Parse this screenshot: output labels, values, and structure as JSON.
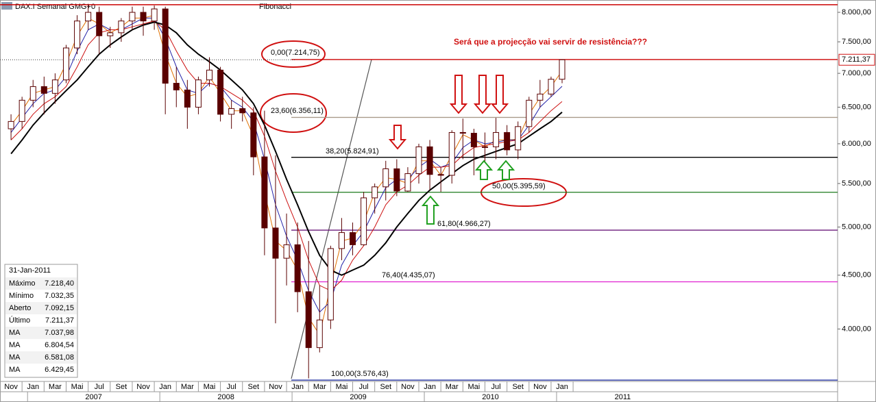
{
  "chart_data": {
    "type": "candlestick",
    "header": "DAX.I Semanal GMG+0",
    "tool": "Fibonacci",
    "annotation": "Será que a projecção vai servir de resistência???",
    "log_scale": true,
    "grid": false,
    "up_color": "#ffffff",
    "down_color": "#5a0000",
    "x": [
      "2006-11",
      "2006-12",
      "2007-01",
      "2007-02",
      "2007-03",
      "2007-04",
      "2007-05",
      "2007-06",
      "2007-07",
      "2007-08",
      "2007-09",
      "2007-10",
      "2007-11",
      "2007-12",
      "2008-01",
      "2008-02",
      "2008-03",
      "2008-04",
      "2008-05",
      "2008-06",
      "2008-07",
      "2008-08",
      "2008-09",
      "2008-10",
      "2008-11",
      "2008-12",
      "2009-01",
      "2009-02",
      "2009-03",
      "2009-04",
      "2009-05",
      "2009-06",
      "2009-07",
      "2009-08",
      "2009-09",
      "2009-10",
      "2009-11",
      "2009-12",
      "2010-01",
      "2010-02",
      "2010-03",
      "2010-04",
      "2010-05",
      "2010-06",
      "2010-07",
      "2010-08",
      "2010-09",
      "2010-10",
      "2010-11",
      "2010-12",
      "2011-01"
    ],
    "open": [
      6200,
      6300,
      6600,
      6800,
      6700,
      6900,
      7400,
      7850,
      8000,
      7600,
      7650,
      7850,
      8000,
      7850,
      8060,
      6850,
      6750,
      6500,
      6900,
      7050,
      6400,
      6480,
      6420,
      5830,
      4990,
      4670,
      4810,
      4340,
      3840,
      4080,
      4770,
      4940,
      4810,
      5330,
      5460,
      5680,
      5410,
      5620,
      5960,
      5610,
      5600,
      6150,
      6140,
      5960,
      5960,
      6150,
      5920,
      6230,
      6600,
      6690,
      6910
    ],
    "high": [
      6400,
      6650,
      6900,
      6950,
      7000,
      7450,
      7950,
      8150,
      8100,
      7750,
      7900,
      8100,
      8100,
      8120,
      8100,
      7100,
      6900,
      6950,
      7250,
      7100,
      6600,
      6650,
      6500,
      6450,
      5850,
      5150,
      5050,
      4850,
      4400,
      4800,
      5100,
      5050,
      5400,
      5500,
      5780,
      5800,
      5700,
      6000,
      6050,
      5700,
      6180,
      6340,
      6200,
      6150,
      6350,
      6250,
      6300,
      6650,
      6900,
      6950,
      7218.4
    ],
    "low": [
      6050,
      6200,
      6500,
      6400,
      6550,
      6850,
      7300,
      7700,
      7300,
      7400,
      7500,
      7700,
      7600,
      7700,
      6400,
      6500,
      6200,
      6400,
      6800,
      6300,
      6200,
      6300,
      5600,
      4700,
      4050,
      4400,
      4150,
      3590,
      3800,
      4000,
      4650,
      4700,
      4800,
      5150,
      5300,
      5350,
      5400,
      5500,
      5420,
      5400,
      5500,
      5800,
      5600,
      5700,
      5800,
      5850,
      5800,
      6150,
      6500,
      6650,
      6850
    ],
    "close": [
      6300,
      6600,
      6800,
      6700,
      6900,
      7400,
      7850,
      8000,
      7600,
      7650,
      7850,
      8000,
      7850,
      8060,
      6850,
      6750,
      6500,
      6900,
      7050,
      6400,
      6480,
      6420,
      5830,
      4990,
      4670,
      4810,
      4340,
      3840,
      4080,
      4770,
      4940,
      4810,
      5330,
      5460,
      5680,
      5410,
      5620,
      5960,
      5610,
      5600,
      6150,
      6140,
      5960,
      5960,
      6150,
      5920,
      6230,
      6600,
      6690,
      6910,
      7211.37
    ],
    "series": [
      {
        "name": "MA",
        "color": "#e07000",
        "legend_value": "7.037,98",
        "values": [
          6250,
          6450,
          6700,
          6750,
          6800,
          7150,
          7600,
          7900,
          7800,
          7650,
          7750,
          7900,
          7900,
          7950,
          7300,
          6850,
          6650,
          6700,
          6950,
          6700,
          6450,
          6450,
          6100,
          5400,
          4850,
          4750,
          4550,
          4100,
          3950,
          4400,
          4850,
          4880,
          5050,
          5400,
          5570,
          5550,
          5500,
          5780,
          5780,
          5600,
          5850,
          6120,
          6050,
          5960,
          6050,
          6050,
          6060,
          6400,
          6640,
          6800,
          7037.98
        ]
      },
      {
        "name": "MA",
        "color": "#2020a8",
        "legend_value": "6.804,54",
        "values": [
          6150,
          6350,
          6550,
          6700,
          6750,
          6950,
          7350,
          7700,
          7800,
          7700,
          7700,
          7800,
          7900,
          7900,
          7550,
          7100,
          6750,
          6700,
          6850,
          6800,
          6600,
          6500,
          6300,
          5800,
          5250,
          4900,
          4650,
          4350,
          4150,
          4250,
          4600,
          4800,
          4950,
          5200,
          5450,
          5550,
          5550,
          5700,
          5800,
          5700,
          5750,
          5950,
          6050,
          6000,
          6020,
          6050,
          6050,
          6250,
          6500,
          6650,
          6804.54
        ]
      },
      {
        "name": "MA",
        "color": "#cc1010",
        "legend_value": "6.581,08",
        "values": [
          6050,
          6200,
          6400,
          6550,
          6650,
          6800,
          7100,
          7450,
          7650,
          7700,
          7700,
          7750,
          7800,
          7850,
          7700,
          7350,
          7050,
          6850,
          6850,
          6800,
          6700,
          6600,
          6450,
          6100,
          5650,
          5300,
          5000,
          4650,
          4400,
          4350,
          4450,
          4650,
          4800,
          5000,
          5250,
          5400,
          5480,
          5600,
          5700,
          5700,
          5720,
          5850,
          5950,
          5980,
          6000,
          6030,
          6050,
          6150,
          6300,
          6450,
          6581.08
        ]
      },
      {
        "name": "MA",
        "color": "#000000",
        "legend_value": "6.429,45",
        "values": [
          5870,
          6050,
          6250,
          6420,
          6580,
          6740,
          6900,
          7100,
          7300,
          7450,
          7580,
          7700,
          7780,
          7830,
          7780,
          7650,
          7450,
          7300,
          7180,
          7050,
          6900,
          6750,
          6550,
          6250,
          5900,
          5550,
          5250,
          4950,
          4700,
          4550,
          4500,
          4550,
          4600,
          4700,
          4830,
          5000,
          5150,
          5300,
          5420,
          5520,
          5620,
          5720,
          5800,
          5850,
          5900,
          5950,
          6000,
          6100,
          6200,
          6300,
          6429.45
        ]
      }
    ],
    "fib_levels": [
      {
        "label": "0,00(7.214,75)",
        "value": 7214.75,
        "color": "#cc0000"
      },
      {
        "label": "23,60(6.356,11)",
        "value": 6356.11,
        "color": "#a89a8a"
      },
      {
        "label": "38,20(5.824,91)",
        "value": 5824.91,
        "color": "#000000"
      },
      {
        "label": "50,00(5.395,59)",
        "value": 5395.59,
        "color": "#1a7a1a"
      },
      {
        "label": "61,80(4.966,27)",
        "value": 4966.27,
        "color": "#6a1a7a"
      },
      {
        "label": "76,40(4.435,07)",
        "value": 4435.07,
        "color": "#e020d0"
      },
      {
        "label": "100,00(3.576,43)",
        "value": 3576.43,
        "color": "#2030a0"
      }
    ],
    "hlines": [
      {
        "value": 8135,
        "color": "#cc0000"
      }
    ],
    "xlim": [
      "2006-10",
      "2013-02"
    ],
    "ylim": [
      3566,
      8219
    ],
    "yticks": [
      {
        "value": 4000,
        "label": "4.000,00"
      },
      {
        "value": 4500,
        "label": "4.500,00"
      },
      {
        "value": 5000,
        "label": "5.000,00"
      },
      {
        "value": 5500,
        "label": "5.500,00"
      },
      {
        "value": 6000,
        "label": "6.000,00"
      },
      {
        "value": 6500,
        "label": "6.500,00"
      },
      {
        "value": 7000,
        "label": "7.000,00"
      },
      {
        "value": 7500,
        "label": "7.500,00"
      },
      {
        "value": 8000,
        "label": "8.000,00"
      }
    ],
    "xticks": [
      {
        "value": "2006-11",
        "label": "Nov"
      },
      {
        "value": "2007-01",
        "label": "Jan"
      },
      {
        "value": "2007-03",
        "label": "Mar"
      },
      {
        "value": "2007-05",
        "label": "Mai"
      },
      {
        "value": "2007-07",
        "label": "Jul"
      },
      {
        "value": "2007-09",
        "label": "Set"
      },
      {
        "value": "2007-11",
        "label": "Nov"
      },
      {
        "value": "2008-01",
        "label": "Jan"
      },
      {
        "value": "2008-03",
        "label": "Mar"
      },
      {
        "value": "2008-05",
        "label": "Mai"
      },
      {
        "value": "2008-07",
        "label": "Jul"
      },
      {
        "value": "2008-09",
        "label": "Set"
      },
      {
        "value": "2008-11",
        "label": "Nov"
      },
      {
        "value": "2009-01",
        "label": "Jan"
      },
      {
        "value": "2009-03",
        "label": "Mar"
      },
      {
        "value": "2009-05",
        "label": "Mai"
      },
      {
        "value": "2009-07",
        "label": "Jul"
      },
      {
        "value": "2009-09",
        "label": "Set"
      },
      {
        "value": "2009-11",
        "label": "Nov"
      },
      {
        "value": "2010-01",
        "label": "Jan"
      },
      {
        "value": "2010-03",
        "label": "Mar"
      },
      {
        "value": "2010-05",
        "label": "Mai"
      },
      {
        "value": "2010-07",
        "label": "Jul"
      },
      {
        "value": "2010-09",
        "label": "Set"
      },
      {
        "value": "2010-11",
        "label": "Nov"
      },
      {
        "value": "2011-01",
        "label": "Jan"
      }
    ],
    "years": [
      2007,
      2008,
      2009,
      2010,
      2011
    ],
    "info_box": {
      "date": "31-Jan-2011",
      "rows": [
        [
          "Máximo",
          "7.218,40"
        ],
        [
          "Mínimo",
          "7.032,35"
        ],
        [
          "Aberto",
          "7.092,15"
        ],
        [
          "Último",
          "7.211,37"
        ]
      ]
    }
  }
}
